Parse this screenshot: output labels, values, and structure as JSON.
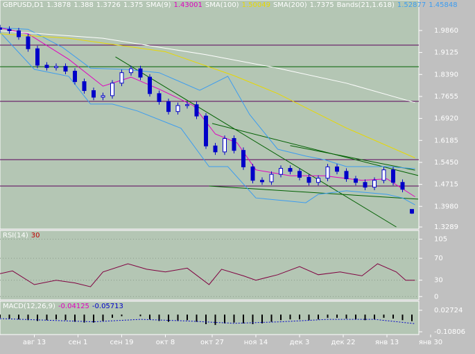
{
  "chart_data": [
    {
      "type": "candlestick",
      "title": "GBPUSD,D1",
      "color": "#0000c8",
      "x": [
        0,
        3,
        6,
        9,
        12,
        15,
        18,
        21,
        24,
        27,
        30,
        33,
        36,
        39,
        42,
        45,
        48,
        51,
        54,
        57,
        60,
        63,
        66,
        69,
        72,
        75,
        78,
        81,
        84,
        87,
        90,
        93,
        96,
        99,
        102,
        105,
        108,
        111,
        114,
        117,
        120,
        123,
        126,
        129,
        132
      ],
      "open": [
        1.995,
        1.99,
        1.985,
        1.965,
        1.925,
        1.87,
        1.862,
        1.866,
        1.85,
        1.815,
        1.785,
        1.763,
        1.768,
        1.81,
        1.845,
        1.858,
        1.83,
        1.775,
        1.748,
        1.715,
        1.735,
        1.738,
        1.7,
        1.6,
        1.58,
        1.625,
        1.585,
        1.53,
        1.485,
        1.48,
        1.505,
        1.525,
        1.515,
        1.495,
        1.478,
        1.492,
        1.53,
        1.515,
        1.49,
        1.478,
        1.462,
        1.485,
        1.52,
        1.478,
        1.3878
      ],
      "high": [
        2.005,
        2.0,
        1.995,
        1.975,
        1.935,
        1.88,
        1.876,
        1.876,
        1.86,
        1.825,
        1.795,
        1.778,
        1.82,
        1.855,
        1.868,
        1.868,
        1.84,
        1.785,
        1.758,
        1.745,
        1.748,
        1.748,
        1.71,
        1.61,
        1.635,
        1.635,
        1.595,
        1.54,
        1.495,
        1.515,
        1.535,
        1.535,
        1.525,
        1.505,
        1.502,
        1.54,
        1.54,
        1.525,
        1.5,
        1.488,
        1.495,
        1.53,
        1.53,
        1.488,
        1.388
      ],
      "low": [
        1.98,
        1.975,
        1.955,
        1.915,
        1.86,
        1.852,
        1.852,
        1.84,
        1.805,
        1.775,
        1.753,
        1.753,
        1.758,
        1.8,
        1.835,
        1.82,
        1.765,
        1.738,
        1.705,
        1.705,
        1.725,
        1.69,
        1.59,
        1.57,
        1.57,
        1.575,
        1.52,
        1.475,
        1.47,
        1.47,
        1.495,
        1.505,
        1.485,
        1.468,
        1.468,
        1.482,
        1.505,
        1.48,
        1.468,
        1.452,
        1.452,
        1.475,
        1.468,
        1.445,
        1.3726
      ],
      "close": [
        1.99,
        1.985,
        1.965,
        1.925,
        1.87,
        1.862,
        1.866,
        1.85,
        1.815,
        1.785,
        1.763,
        1.768,
        1.81,
        1.845,
        1.858,
        1.83,
        1.775,
        1.748,
        1.715,
        1.735,
        1.738,
        1.7,
        1.6,
        1.58,
        1.625,
        1.585,
        1.53,
        1.485,
        1.48,
        1.505,
        1.525,
        1.515,
        1.495,
        1.478,
        1.492,
        1.53,
        1.515,
        1.49,
        1.478,
        1.462,
        1.485,
        1.52,
        1.478,
        1.455,
        1.375
      ],
      "xlim": [
        0,
        140
      ],
      "ylim": [
        1.322,
        2.088
      ],
      "yticks": [
        {
          "value": 1.986,
          "label": "1.9860"
        },
        1.9125,
        {
          "value": 1.839,
          "label": "1.8390"
        },
        1.7655,
        {
          "value": 1.692,
          "label": "1.6920"
        },
        1.6185,
        {
          "value": 1.545,
          "label": "1.5450"
        },
        1.4715,
        {
          "value": 1.398,
          "label": "1.3980"
        },
        1.3289
      ],
      "xticks": [
        {
          "value": 11,
          "label": "авг 13"
        },
        {
          "value": 25,
          "label": "сен 1"
        },
        {
          "value": 39,
          "label": "сен 19"
        },
        {
          "value": 53,
          "label": "окт 8"
        },
        {
          "value": 68,
          "label": "окт 27"
        },
        {
          "value": 82,
          "label": "ноя 14"
        },
        {
          "value": 96,
          "label": "дек 3"
        },
        {
          "value": 110,
          "label": "дек 22"
        },
        {
          "value": 124,
          "label": "янв 13"
        },
        {
          "value": 138,
          "label": "янв 30"
        }
      ],
      "overlays": [
        {
          "name": "SMA(9)",
          "value": 1.43001,
          "color": "#e000c0",
          "x": [
            0,
            9,
            22,
            33,
            42,
            51,
            62,
            69,
            76,
            82,
            93,
            104,
            116,
            124,
            133
          ],
          "values": [
            1.995,
            1.975,
            1.89,
            1.8,
            1.83,
            1.79,
            1.735,
            1.64,
            1.61,
            1.52,
            1.5,
            1.5,
            1.485,
            1.49,
            1.43
          ]
        },
        {
          "name": "SMA(100)",
          "value": 1.50049,
          "color": "#e8d800",
          "x": [
            0,
            22,
            53,
            75,
            89,
            111,
            133
          ],
          "values": [
            1.975,
            1.96,
            1.915,
            1.835,
            1.775,
            1.66,
            1.56
          ]
        },
        {
          "name": "SMA(200)",
          "value": 1.7375,
          "color": "#ffffff",
          "x": [
            0,
            33,
            66,
            89,
            111,
            133
          ],
          "values": [
            1.985,
            1.96,
            1.905,
            1.86,
            1.81,
            1.745
          ]
        }
      ],
      "bands": {
        "name": "Bands(21,1.618)",
        "values": [
          1.52877,
          1.45848
        ],
        "color": "#3c9cf0",
        "upper": {
          "x": [
            0,
            9,
            20,
            29,
            40,
            51,
            64,
            73,
            80,
            89,
            98,
            104,
            111,
            124,
            133
          ],
          "values": [
            1.995,
            1.99,
            1.93,
            1.86,
            1.856,
            1.845,
            1.786,
            1.833,
            1.705,
            1.589,
            1.566,
            1.554,
            1.531,
            1.531,
            1.524
          ]
        },
        "lower": {
          "x": [
            0,
            11,
            22,
            29,
            36,
            44,
            58,
            67,
            73,
            82,
            93,
            98,
            102,
            111,
            124,
            129,
            133
          ],
          "values": [
            1.98,
            1.856,
            1.833,
            1.74,
            1.74,
            1.717,
            1.659,
            1.531,
            1.531,
            1.426,
            1.415,
            1.41,
            1.438,
            1.45,
            1.438,
            1.426,
            1.403
          ]
        }
      },
      "levels": [
        {
          "value": 1.937,
          "color": "#5a005a"
        },
        {
          "value": 1.865,
          "color": "#006000"
        },
        {
          "value": 1.749,
          "color": "#5a005a"
        },
        {
          "value": 1.554,
          "color": "#5a005a"
        },
        {
          "value": 1.466,
          "color": "#5a005a"
        }
      ],
      "trendlines": [
        {
          "x": [
            37,
            127
          ],
          "values": [
            1.898,
            1.329
          ],
          "color": "#006000"
        },
        {
          "x": [
            68,
            134
          ],
          "values": [
            1.675,
            1.501
          ],
          "color": "#006000"
        },
        {
          "x": [
            93,
            133
          ],
          "values": [
            1.601,
            1.519
          ],
          "color": "#006000"
        },
        {
          "x": [
            67,
            134
          ],
          "values": [
            1.466,
            1.422
          ],
          "color": "#006000"
        }
      ]
    },
    {
      "type": "line",
      "title": "RSI(14)",
      "value": 30,
      "color": "#800040",
      "value_color": "#c00000",
      "x": [
        0,
        4,
        11,
        18,
        24,
        29,
        33,
        41,
        47,
        53,
        60,
        67,
        71,
        78,
        82,
        89,
        96,
        102,
        109,
        116,
        121,
        127,
        130,
        133
      ],
      "values": [
        42,
        47,
        22,
        30,
        25,
        18,
        45,
        60,
        50,
        45,
        52,
        22,
        50,
        38,
        30,
        40,
        55,
        40,
        45,
        38,
        60,
        45,
        30,
        30
      ],
      "xlim": [
        0,
        140
      ],
      "ylim": [
        -6,
        121
      ],
      "yticks": [
        105,
        70,
        30,
        0
      ]
    },
    {
      "type": "macd",
      "title": "MACD(12,26,9)",
      "color": "#000000",
      "hist_color": "#e000c0",
      "signal_color": "#0000c8",
      "x": [
        0,
        3,
        6,
        9,
        12,
        15,
        18,
        21,
        24,
        27,
        30,
        33,
        36,
        39,
        42,
        45,
        48,
        51,
        54,
        57,
        60,
        63,
        66,
        69,
        72,
        75,
        78,
        81,
        84,
        87,
        90,
        93,
        96,
        99,
        102,
        105,
        108,
        111,
        114,
        117,
        120,
        123,
        126,
        129,
        132
      ],
      "values": [
        -0.02,
        -0.025,
        -0.03,
        -0.035,
        -0.04,
        -0.035,
        -0.03,
        -0.035,
        -0.045,
        -0.05,
        -0.05,
        -0.04,
        -0.02,
        -0.01,
        0.0,
        -0.01,
        -0.03,
        -0.04,
        -0.045,
        -0.04,
        -0.035,
        -0.045,
        -0.06,
        -0.065,
        -0.055,
        -0.05,
        -0.055,
        -0.06,
        -0.055,
        -0.045,
        -0.035,
        -0.03,
        -0.03,
        -0.035,
        -0.03,
        -0.02,
        -0.02,
        -0.025,
        -0.03,
        -0.035,
        -0.03,
        -0.02,
        -0.025,
        -0.035,
        -0.04125
      ],
      "signal": {
        "x": [
          0,
          15,
          30,
          45,
          60,
          75,
          90,
          105,
          120,
          133
        ],
        "values": [
          -0.025,
          -0.035,
          -0.045,
          -0.03,
          -0.04,
          -0.055,
          -0.045,
          -0.03,
          -0.03,
          -0.05713
        ]
      },
      "xlim": [
        0,
        140
      ],
      "ylim": [
        -0.1255,
        0.084
      ],
      "yticks": [
        0.02724,
        -0.10806
      ]
    }
  ]
}
